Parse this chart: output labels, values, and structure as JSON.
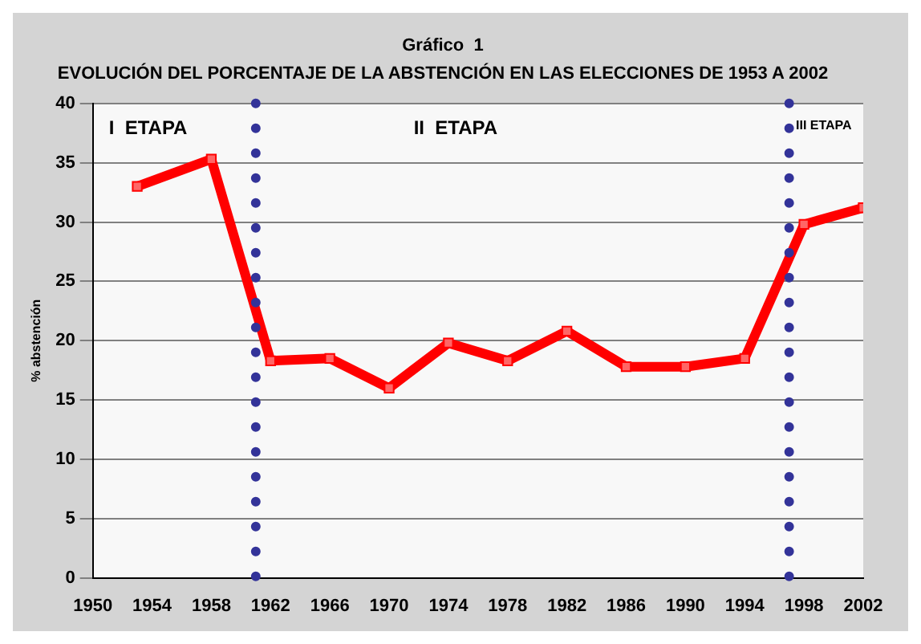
{
  "chart_data": {
    "type": "line",
    "title": "Gráfico  1",
    "subtitle": "EVOLUCIÓN DEL PORCENTAJE DE LA ABSTENCIÓN EN LAS ELECCIONES DE 1953 A 2002",
    "ylabel": "% abstención",
    "x": [
      1953,
      1958,
      1962,
      1966,
      1970,
      1974,
      1978,
      1982,
      1986,
      1990,
      1994,
      1998,
      2002
    ],
    "series": [
      {
        "color": "#ff0000",
        "values": [
          33,
          35.3,
          18.3,
          18.5,
          16,
          19.8,
          18.3,
          20.8,
          17.8,
          17.8,
          18.5,
          29.8,
          31.2
        ]
      }
    ],
    "xlim": [
      1950,
      2002
    ],
    "xticks": [
      1950,
      1954,
      1958,
      1962,
      1966,
      1970,
      1974,
      1978,
      1982,
      1986,
      1990,
      1994,
      1998,
      2002
    ],
    "ylim": [
      0,
      40
    ],
    "yticks": [
      0,
      5,
      10,
      15,
      20,
      25,
      30,
      35,
      40
    ],
    "ref_lines": [
      {
        "axis": "x",
        "value": 1961,
        "color": "#333399",
        "line_style": "dotted"
      },
      {
        "axis": "x",
        "value": 1997,
        "color": "#333399",
        "line_style": "dotted"
      }
    ],
    "annotations": [
      "I  ETAPA",
      "II  ETAPA",
      "III ETAPA"
    ],
    "grid": "y",
    "legend": false,
    "marker": "square",
    "line_style": "solid"
  }
}
